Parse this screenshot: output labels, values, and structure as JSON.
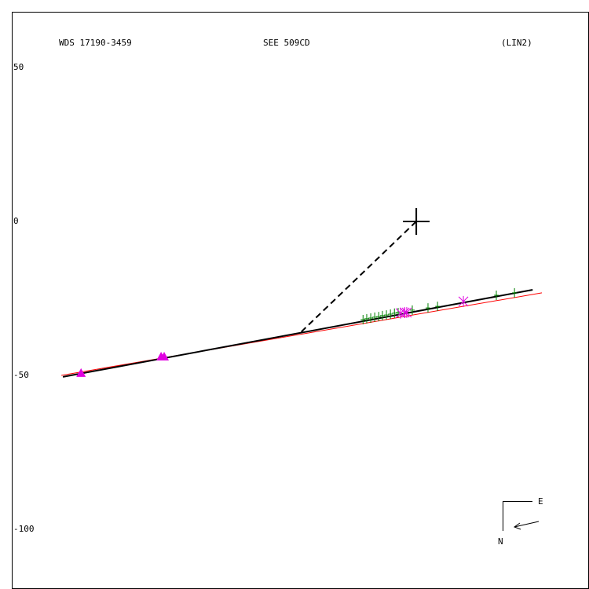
{
  "chart_data": {
    "type": "scatter",
    "header": [
      "WDS 17190-3459",
      "SEE 509CD",
      "(LIN2)"
    ],
    "xlim": [
      -131.4,
      56.1
    ],
    "ylim": [
      -119.4,
      68.1
    ],
    "yticks": [
      50,
      0,
      -50,
      -100
    ],
    "series": [
      {
        "marker": "line",
        "color": "#ff0000",
        "x": [
          -115.3,
          40.8
        ],
        "y": [
          -50.0,
          -23.2
        ]
      },
      {
        "marker": "line",
        "color": "#000000",
        "x": [
          -114.8,
          37.8
        ],
        "y": [
          -50.5,
          -22.2
        ]
      },
      {
        "marker": "dashed",
        "color": "#000000",
        "x": [
          0,
          -37.5
        ],
        "y": [
          0,
          -36.0
        ]
      },
      {
        "marker": "plus",
        "color": "#008000",
        "x": [
          -17.3,
          -16.1,
          -14.8,
          -13.5,
          -12.2,
          -11.0,
          -9.7,
          -8.4,
          -7.1,
          -5.9,
          -1.3,
          3.8,
          6.9,
          26.0,
          31.9
        ],
        "y": [
          -31.9,
          -31.6,
          -31.4,
          -31.1,
          -30.9,
          -30.6,
          -30.4,
          -30.1,
          -29.8,
          -29.6,
          -28.8,
          -28.1,
          -27.6,
          -24.0,
          -23.2
        ]
      },
      {
        "marker": "triangle",
        "color": "#e000e0",
        "x": [
          -108.9,
          -82.9,
          -81.9
        ],
        "y": [
          -49.2,
          -43.9,
          -43.9
        ]
      },
      {
        "marker": "asterisk",
        "color": "#e000e0",
        "x": [
          -5.1,
          -3.8,
          -3.1,
          15.3
        ],
        "y": [
          -29.8,
          -29.6,
          -29.6,
          -26.0
        ]
      },
      {
        "marker": "cross",
        "color": "#000000",
        "x": [
          0
        ],
        "y": [
          0
        ]
      }
    ],
    "compass": {
      "east": "E",
      "north": "N"
    }
  }
}
